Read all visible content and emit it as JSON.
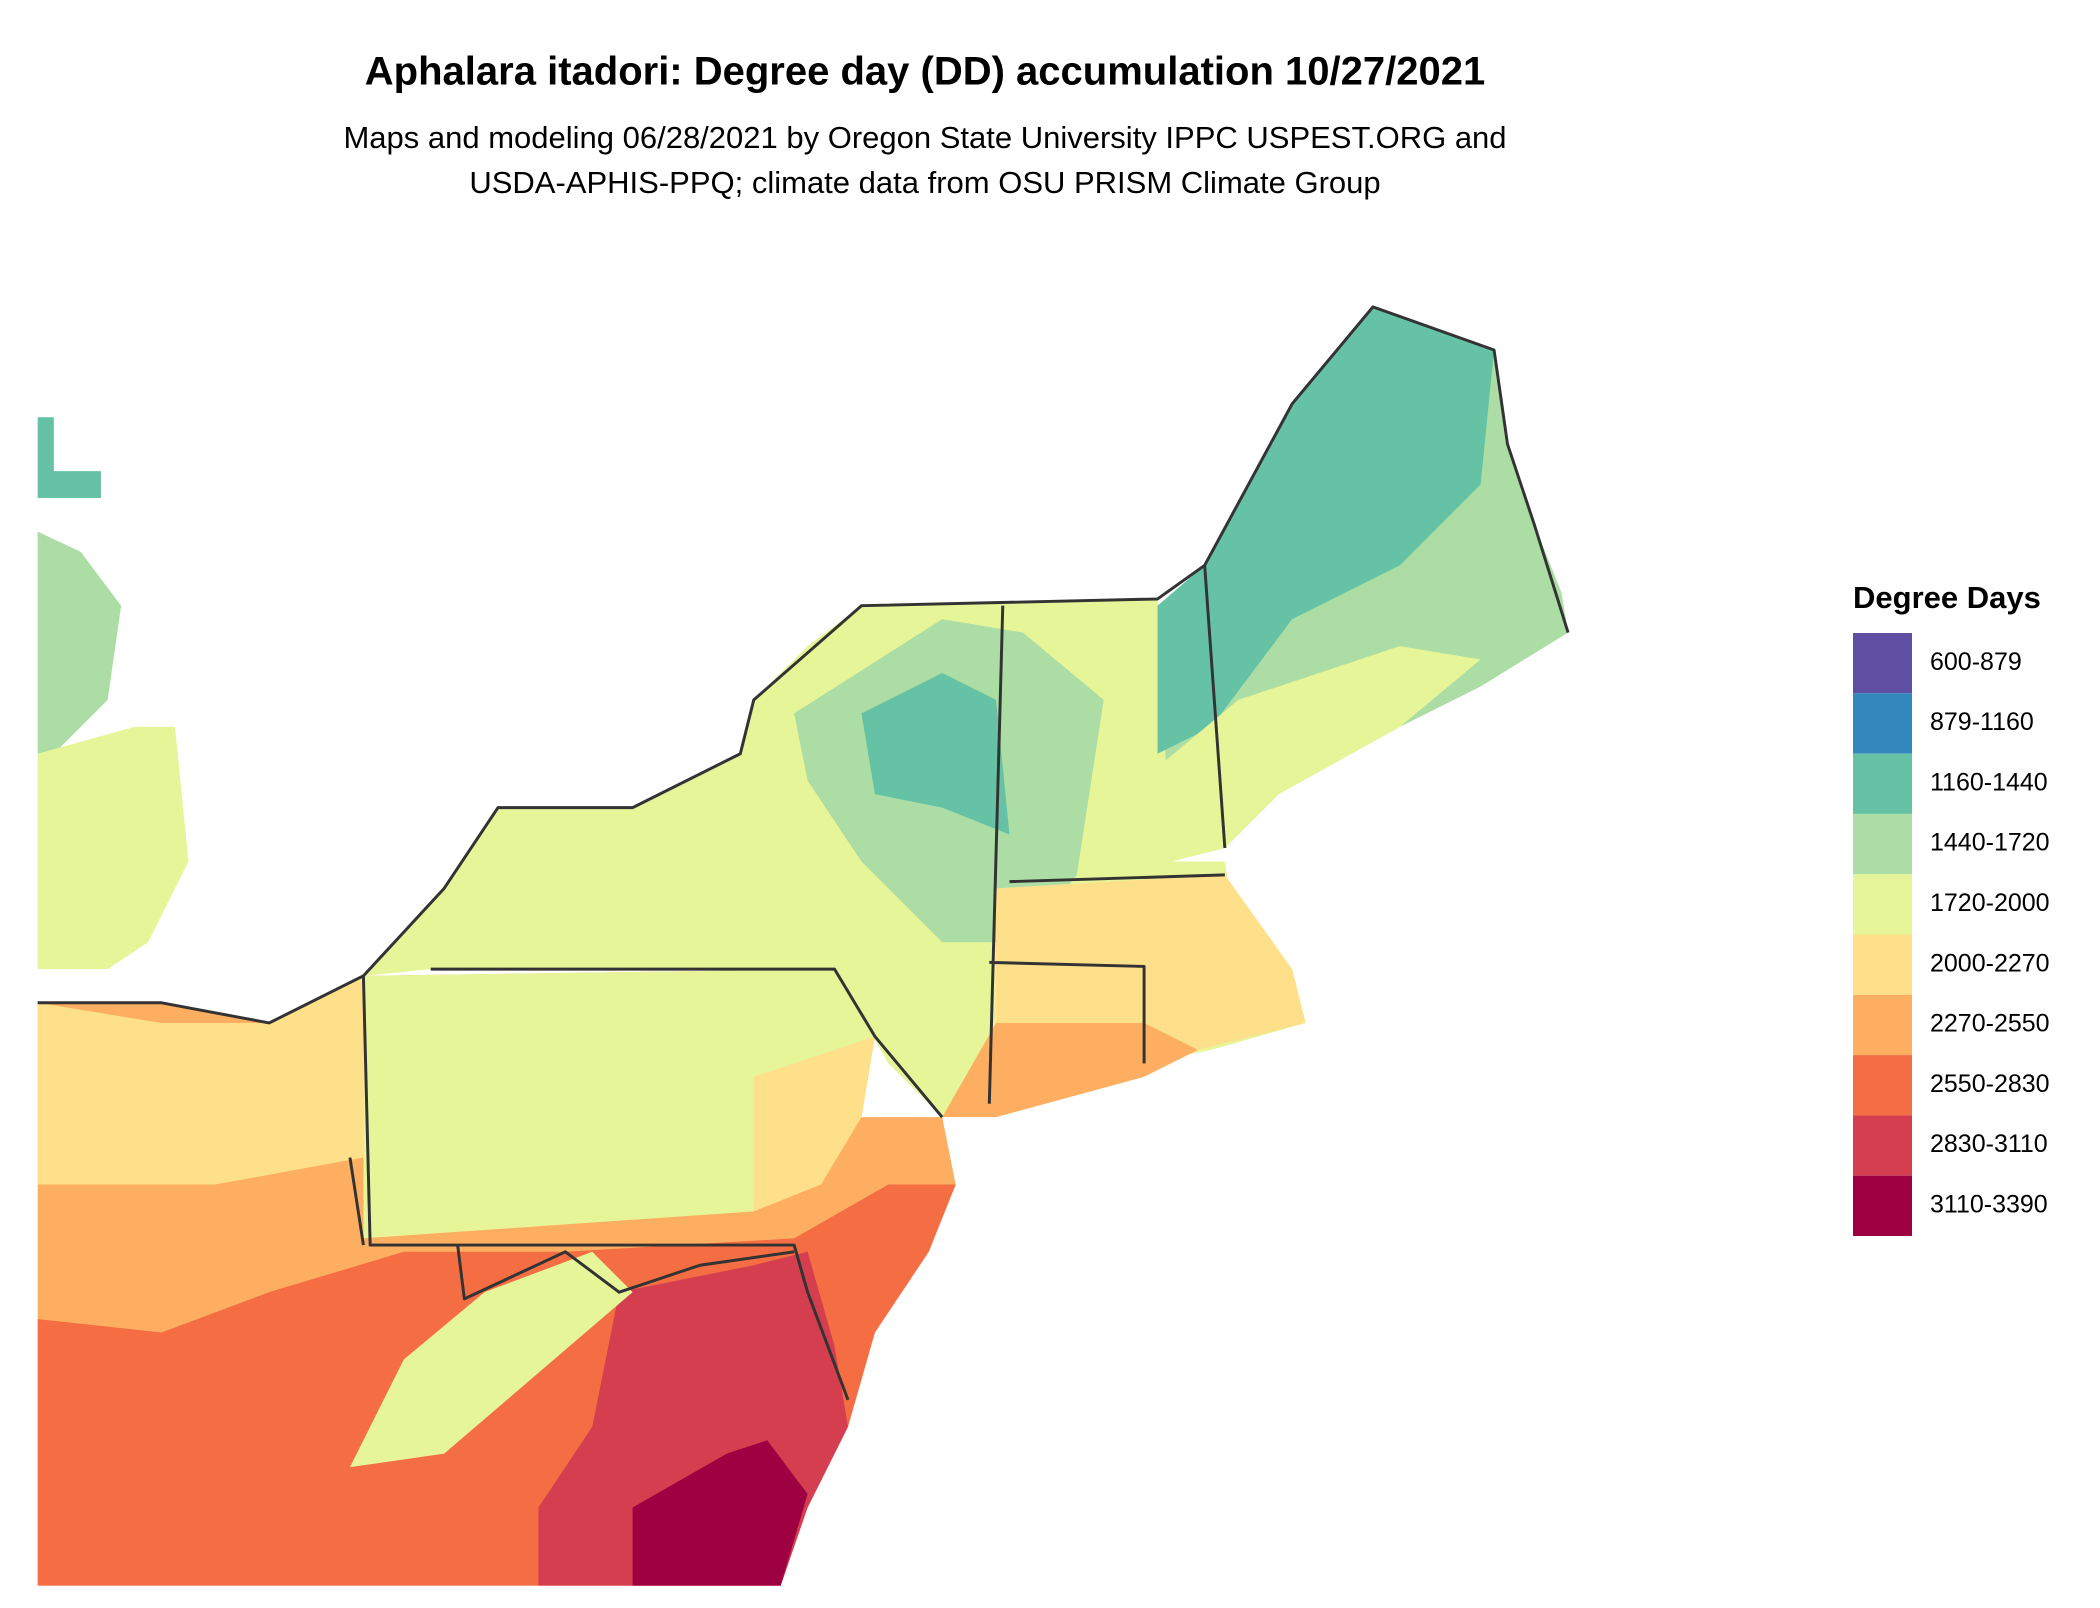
{
  "title": "Aphalara itadori: Degree day (DD) accumulation 10/27/2021",
  "subtitle": [
    "Maps and modeling 06/28/2021 by Oregon State University IPPC USPEST.ORG and",
    "USDA-APHIS-PPQ; climate data from OSU PRISM Climate Group"
  ],
  "legend": {
    "title": "Degree Days",
    "items": [
      {
        "label": "600-879",
        "color": "#5e4fa2"
      },
      {
        "label": "879-1160",
        "color": "#3288bd"
      },
      {
        "label": "1160-1440",
        "color": "#66c2a5"
      },
      {
        "label": "1440-1720",
        "color": "#abdda4"
      },
      {
        "label": "1720-2000",
        "color": "#e6f598"
      },
      {
        "label": "2000-2270",
        "color": "#fee08b"
      },
      {
        "label": "2270-2550",
        "color": "#fdae61"
      },
      {
        "label": "2550-2830",
        "color": "#f46d43"
      },
      {
        "label": "2830-3110",
        "color": "#d53e4f"
      },
      {
        "label": "3110-3390",
        "color": "#9e0142"
      }
    ]
  }
}
